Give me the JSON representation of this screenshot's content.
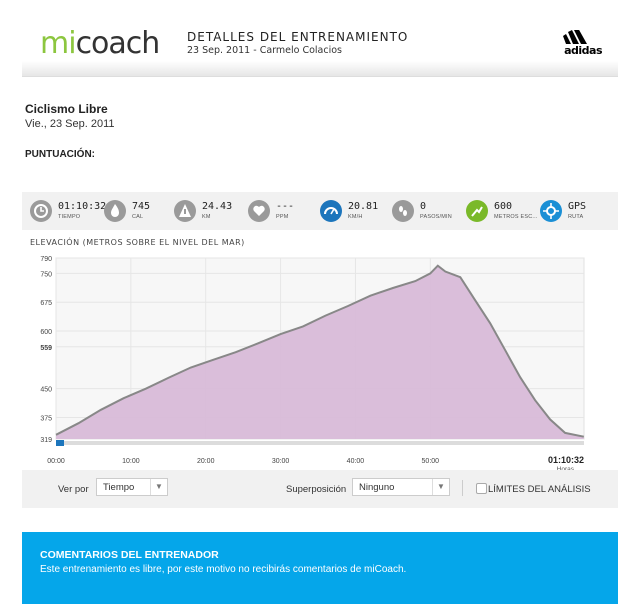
{
  "header": {
    "logo_mi": "mi",
    "logo_coach": "coach",
    "title": "DETALLES DEL ENTRENAMIENTO",
    "subtitle": "23 Sep. 2011 - Carmelo Colacios",
    "brand": "adidas"
  },
  "workout": {
    "title": "Ciclismo Libre",
    "date": "Vie., 23 Sep. 2011",
    "score_label": "PUNTUACIÓN:"
  },
  "stats": [
    {
      "value": "01:10:32",
      "label": "TIEMPO",
      "icon": "clock-icon",
      "color": "#9a9a9a"
    },
    {
      "value": "745",
      "label": "CAL",
      "icon": "flame-icon",
      "color": "#9a9a9a"
    },
    {
      "value": "24.43",
      "label": "KM",
      "icon": "distance-icon",
      "color": "#9a9a9a"
    },
    {
      "value": "---",
      "label": "PPM",
      "icon": "heart-icon",
      "color": "#9a9a9a"
    },
    {
      "value": "20.81",
      "label": "KM/H",
      "icon": "speedometer-icon",
      "color": "#1c75bc"
    },
    {
      "value": "0",
      "label": "PASOS/MIN",
      "icon": "footsteps-icon",
      "color": "#9a9a9a"
    },
    {
      "value": "600",
      "label": "METROS ESC...",
      "icon": "climb-icon",
      "color": "#7ab929"
    },
    {
      "value": "GPS",
      "label": "RUTA",
      "icon": "gps-icon",
      "color": "#1a8fd5"
    }
  ],
  "chart_data": {
    "type": "area",
    "title": "ELEVACIÓN (METROS SOBRE EL NIVEL DEL MAR)",
    "ylim": [
      319,
      790
    ],
    "y_ticks": [
      790,
      750,
      675,
      600,
      559,
      450,
      375,
      319
    ],
    "x_ticks": [
      "00:00",
      "10:00",
      "20:00",
      "30:00",
      "40:00",
      "50:00"
    ],
    "x_tick_minutes": [
      0,
      10,
      20,
      30,
      40,
      50
    ],
    "xlim_minutes": [
      0,
      70.53
    ],
    "end_time": "01:10:32",
    "end_unit": "Horas",
    "x": [
      0,
      3,
      6,
      9,
      12,
      15,
      18,
      21,
      24,
      27,
      30,
      33,
      36,
      39,
      42,
      45,
      48,
      50,
      51,
      52,
      54,
      56,
      58,
      60,
      62,
      64,
      66,
      68,
      70.5
    ],
    "y": [
      330,
      360,
      395,
      425,
      450,
      478,
      505,
      525,
      545,
      568,
      592,
      612,
      640,
      665,
      692,
      712,
      730,
      750,
      770,
      755,
      740,
      680,
      620,
      550,
      480,
      420,
      370,
      335,
      325
    ],
    "fill_color": "#d8bad8",
    "line_color": "#888888"
  },
  "controls": {
    "view_label": "Ver por",
    "view_value": "Tiempo",
    "overlay_label": "Superposición",
    "overlay_value": "Ninguno",
    "limits_label": "LÍMITES DEL ANÁLISIS"
  },
  "comments": {
    "title": "COMENTARIOS DEL ENTRENADOR",
    "text": "Este entrenamiento es libre, por este motivo no recibirás comentarios de miCoach."
  }
}
